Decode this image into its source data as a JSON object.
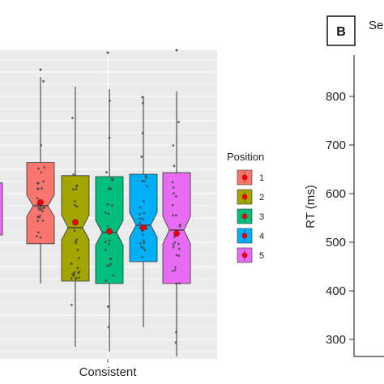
{
  "chart_data": [
    {
      "type": "box",
      "categories": [
        "Consistent"
      ],
      "legend": {
        "title": "Position",
        "placement": "right",
        "entries": [
          {
            "label": "1",
            "color": "#F8766D"
          },
          {
            "label": "2",
            "color": "#A3A500"
          },
          {
            "label": "3",
            "color": "#00BF7D"
          },
          {
            "label": "4",
            "color": "#00B0F6"
          },
          {
            "label": "5",
            "color": "#E76BF3"
          }
        ]
      },
      "grid": true,
      "series": [
        {
          "name": "1",
          "color": "#F8766D",
          "whisker_low": 415,
          "q1": 497,
          "median": 575,
          "q3": 664,
          "whisker_high": 840,
          "notch_low": 553,
          "notch_high": 597,
          "mean": 582
        },
        {
          "name": "2",
          "color": "#A3A500",
          "whisker_low": 285,
          "q1": 420,
          "median": 530,
          "q3": 637,
          "whisker_high": 820,
          "notch_low": 505,
          "notch_high": 556,
          "mean": 541
        },
        {
          "name": "3",
          "color": "#00BF7D",
          "whisker_low": 275,
          "q1": 415,
          "median": 520,
          "q3": 635,
          "whisker_high": 815,
          "notch_low": 494,
          "notch_high": 545,
          "mean": 522
        },
        {
          "name": "4",
          "color": "#00B0F6",
          "whisker_low": 325,
          "q1": 460,
          "median": 535,
          "q3": 640,
          "whisker_high": 800,
          "notch_low": 510,
          "notch_high": 561,
          "mean": 530
        },
        {
          "name": "5",
          "color": "#E76BF3",
          "whisker_low": 265,
          "q1": 415,
          "median": 525,
          "q3": 643,
          "whisker_high": 810,
          "notch_low": 497,
          "notch_high": 553,
          "mean": 518
        }
      ]
    },
    {
      "type": "line",
      "panel_letter": "B",
      "title": "Se",
      "ylabel": "RT (ms)",
      "ylim": [
        270,
        860
      ],
      "yticks": [
        300,
        400,
        500,
        600,
        700,
        800
      ]
    }
  ]
}
